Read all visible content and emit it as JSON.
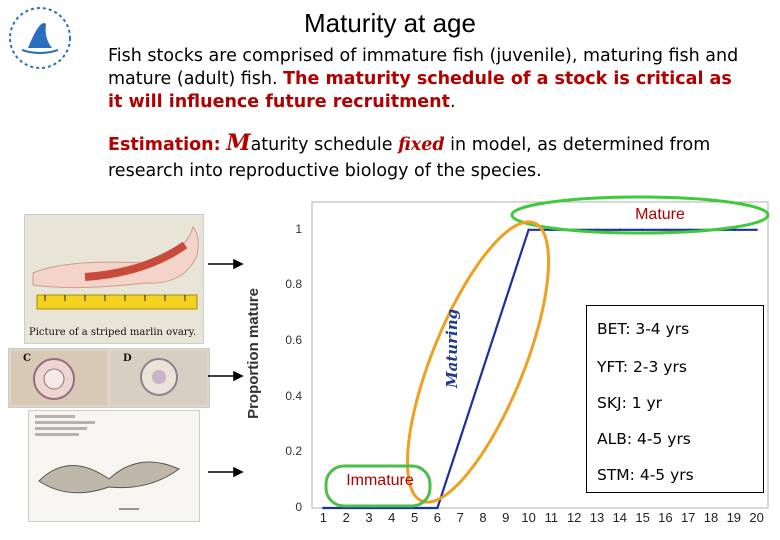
{
  "slide": {
    "title": "Maturity at age",
    "intro_plain": "Fish stocks are comprised of immature fish (juvenile), maturing fish and mature (adult) fish. ",
    "intro_highlight": "The maturity schedule of a stock is critical as it will influence future recruitment",
    "intro_end": ".",
    "estimation_label": "Estimation:",
    "estimation_big_m": "M",
    "estimation_after_m": "aturity schedule ",
    "estimation_fixed": "fixed",
    "estimation_rest": " in model, as determined from research into reproductive biology of the species."
  },
  "photos": {
    "caption_ovary": "Picture of a striped marlin ovary.",
    "label_c": "C",
    "label_d": "D"
  },
  "chart_data": {
    "type": "line",
    "title": "",
    "xlabel": "",
    "ylabel": "Proportion mature",
    "x": [
      1,
      2,
      3,
      4,
      5,
      6,
      7,
      8,
      9,
      10,
      11,
      12,
      13,
      14,
      15,
      16,
      17,
      18,
      19,
      20
    ],
    "y": [
      0,
      0,
      0,
      0,
      0,
      0,
      0.25,
      0.5,
      0.75,
      1,
      1,
      1,
      1,
      1,
      1,
      1,
      1,
      1,
      1,
      1
    ],
    "xticks": [
      "1",
      "2",
      "3",
      "4",
      "5",
      "6",
      "7",
      "8",
      "9",
      "10",
      "11",
      "12",
      "13",
      "14",
      "15",
      "16",
      "17",
      "18",
      "19",
      "20"
    ],
    "yticks": [
      "0",
      "0.2",
      "0.4",
      "0.6",
      "0.8",
      "1"
    ],
    "xlim": [
      0.5,
      20.5
    ],
    "ylim": [
      0,
      1.1
    ],
    "grid": false,
    "series_color": "#1f2f9a"
  },
  "annotations": {
    "mature": "Mature",
    "maturing": "Maturing",
    "immature": "Immature",
    "mature_ellipse_color": "#3ecb3a",
    "maturing_ellipse_color": "#f0a020",
    "immature_box_color": "#4bbf4b"
  },
  "ages": [
    "BET: 3-4 yrs",
    "YFT: 2-3 yrs",
    "SKJ: 1 yr",
    "ALB: 4-5 yrs",
    "STM: 4-5 yrs"
  ]
}
